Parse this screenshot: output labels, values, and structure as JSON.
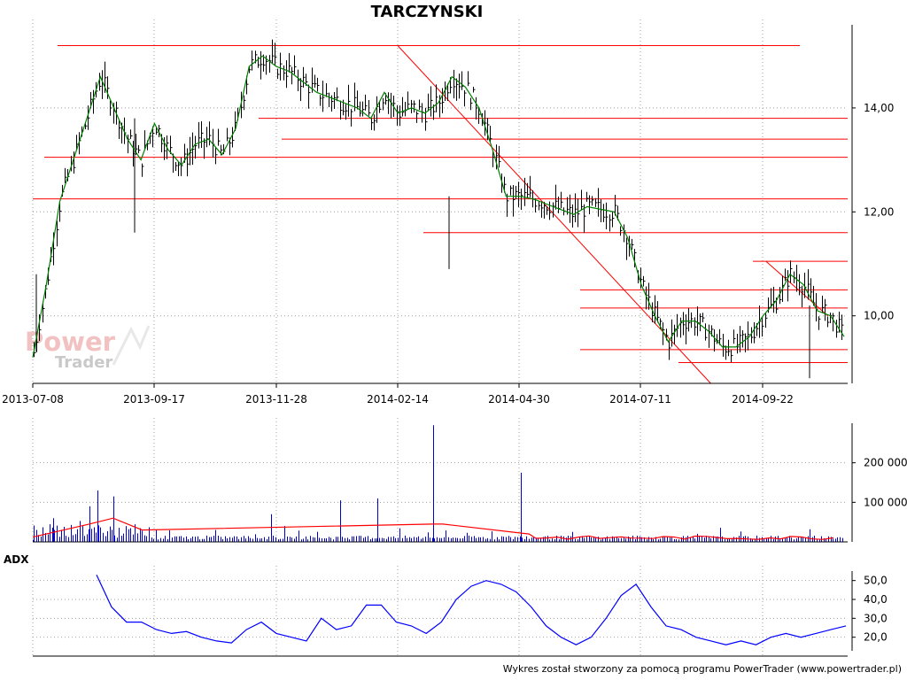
{
  "title": "TARCZYNSKI",
  "footer": "Wykres został stworzony za pomocą programu PowerTrader (www.powertrader.pl)",
  "watermark": {
    "line1": "Power",
    "line2": "Trader"
  },
  "colors": {
    "price_bars": "#000000",
    "ma": "#008000",
    "levels": "#ff0000",
    "volume_bars": "#0000cc",
    "volume_ma": "#ff0000",
    "adx": "#0000ff",
    "grid": "#a0a0a0"
  },
  "chart_data": [
    {
      "panel": "price",
      "type": "line",
      "title": "TARCZYNSKI",
      "x_ticks": [
        "2013-07-08",
        "2013-09-17",
        "2013-11-28",
        "2014-02-14",
        "2014-04-30",
        "2014-07-11",
        "2014-09-22"
      ],
      "y_ticks": [
        "10,00",
        "12,00",
        "14,00"
      ],
      "ylim": [
        8.7,
        15.6
      ],
      "grid": true,
      "series": [
        {
          "values": [
            9.2,
            10.6,
            12.2,
            13.0,
            13.8,
            14.6,
            14.0,
            13.4,
            13.0,
            13.7,
            13.2,
            12.9,
            13.3,
            13.4,
            13.1,
            13.6,
            14.8,
            15.0,
            14.8,
            14.7,
            14.5,
            14.3,
            14.2,
            14.1,
            14.0,
            13.8,
            14.3,
            13.9,
            14.0,
            13.9,
            14.1,
            14.6,
            14.4,
            14.0,
            13.2,
            12.3,
            12.3,
            12.25,
            12.15,
            12.05,
            11.95,
            12.1,
            12.05,
            12.0,
            11.5,
            10.6,
            10.0,
            9.5,
            9.9,
            9.9,
            9.7,
            9.4,
            9.4,
            9.6,
            10.0,
            10.3,
            10.8,
            10.6,
            10.1,
            10.0,
            9.6
          ]
        }
      ],
      "levels": [
        15.2,
        13.8,
        13.4,
        13.05,
        12.25,
        11.6,
        11.05,
        10.5,
        10.15,
        9.35,
        9.1
      ],
      "trendlines": [
        {
          "from": [
            "2014-02-14",
            15.2
          ],
          "to": [
            "2014-08-22",
            8.7
          ]
        },
        {
          "from": [
            "2014-09-24",
            11.05
          ],
          "to": [
            "2014-10-31",
            10.0
          ]
        }
      ]
    },
    {
      "panel": "volume",
      "type": "bar",
      "y_ticks": [
        "100 000",
        "200 000"
      ],
      "ylim": [
        0,
        300000
      ],
      "grid": true,
      "spikes": [
        {
          "date": "2013-07-08",
          "value": 5000
        },
        {
          "date": "2013-07-20",
          "value": 60000
        },
        {
          "date": "2013-08-10",
          "value": 90000
        },
        {
          "date": "2013-08-15",
          "value": 130000
        },
        {
          "date": "2013-08-24",
          "value": 115000
        },
        {
          "date": "2013-11-25",
          "value": 70000
        },
        {
          "date": "2014-01-08",
          "value": 105000
        },
        {
          "date": "2014-02-01",
          "value": 110000
        },
        {
          "date": "2014-03-08",
          "value": 295000
        },
        {
          "date": "2014-05-01",
          "value": 175000
        }
      ],
      "moving_average": [
        {
          "date": "2013-08-10",
          "value": 45000
        },
        {
          "date": "2013-08-24",
          "value": 60000
        },
        {
          "date": "2013-09-10",
          "value": 30000
        },
        {
          "date": "2014-03-08",
          "value": 45000
        },
        {
          "date": "2014-03-14",
          "value": 45000
        },
        {
          "date": "2014-05-06",
          "value": 20000
        }
      ]
    },
    {
      "panel": "adx",
      "type": "line",
      "label": "ADX",
      "y_ticks": [
        "20,0",
        "30,0",
        "40,0",
        "50,0"
      ],
      "ylim": [
        10,
        55
      ],
      "grid": true,
      "series": [
        {
          "values": [
            53,
            36,
            28,
            28,
            24,
            22,
            23,
            20,
            18,
            17,
            24,
            28,
            22,
            20,
            18,
            30,
            24,
            26,
            37,
            37,
            28,
            26,
            22,
            28,
            40,
            47,
            50,
            48,
            44,
            36,
            26,
            20,
            16,
            20,
            30,
            42,
            48,
            36,
            26,
            24,
            20,
            18,
            16,
            18,
            16,
            20,
            22,
            20,
            22,
            24,
            26
          ]
        }
      ]
    }
  ]
}
